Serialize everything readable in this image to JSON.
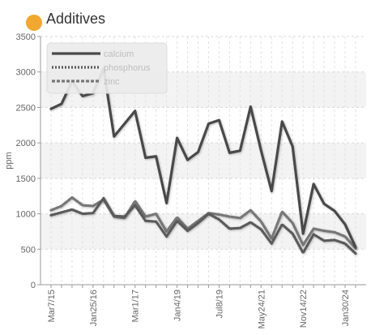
{
  "header": {
    "title": "Additives",
    "dot_color": "#f0a830"
  },
  "chart_data": {
    "type": "line",
    "title": "Additives",
    "xlabel": "",
    "ylabel": "ppm",
    "ylim": [
      0,
      3500
    ],
    "yticks": [
      0,
      500,
      1000,
      1500,
      2000,
      2500,
      3000,
      3500
    ],
    "grid": true,
    "legend_position": "top-left",
    "x": [
      "Mar7/15",
      "",
      "",
      "",
      "Jan25/16",
      "",
      "",
      "",
      "Mar1/17",
      "",
      "",
      "",
      "Jan4/19",
      "",
      "",
      "",
      "Jul8/19",
      "",
      "",
      "",
      "May24/21",
      "",
      "",
      "",
      "Nov14/22",
      "",
      "",
      "",
      "Jan30/24",
      ""
    ],
    "xtick_labels": [
      "Mar7/15",
      "Jan25/16",
      "Mar1/17",
      "Jan4/19",
      "Jul8/19",
      "May24/21",
      "Nov14/22",
      "Jan30/24"
    ],
    "series": [
      {
        "name": "calcium",
        "color": "#4a4a4a",
        "style": "solid",
        "values": [
          2480,
          2550,
          2870,
          2660,
          2700,
          3050,
          2090,
          2270,
          2450,
          1790,
          1810,
          1150,
          2070,
          1760,
          1870,
          2270,
          2320,
          1860,
          1890,
          2510,
          1890,
          1320,
          2300,
          1950,
          720,
          1420,
          1140,
          1040,
          850,
          530
        ]
      },
      {
        "name": "phosphorus",
        "color": "#5a5a5a",
        "style": "dotted",
        "values": [
          980,
          1020,
          1060,
          1000,
          1010,
          1220,
          970,
          960,
          1120,
          900,
          890,
          680,
          900,
          760,
          870,
          1000,
          920,
          790,
          800,
          880,
          780,
          580,
          850,
          720,
          450,
          710,
          620,
          630,
          580,
          440
        ]
      },
      {
        "name": "zinc",
        "color": "#777777",
        "style": "dashed",
        "values": [
          1050,
          1110,
          1230,
          1120,
          1110,
          1200,
          960,
          940,
          1180,
          960,
          1000,
          750,
          950,
          790,
          900,
          1010,
          990,
          960,
          940,
          1050,
          890,
          650,
          1030,
          870,
          560,
          790,
          760,
          740,
          680,
          510
        ]
      }
    ]
  }
}
